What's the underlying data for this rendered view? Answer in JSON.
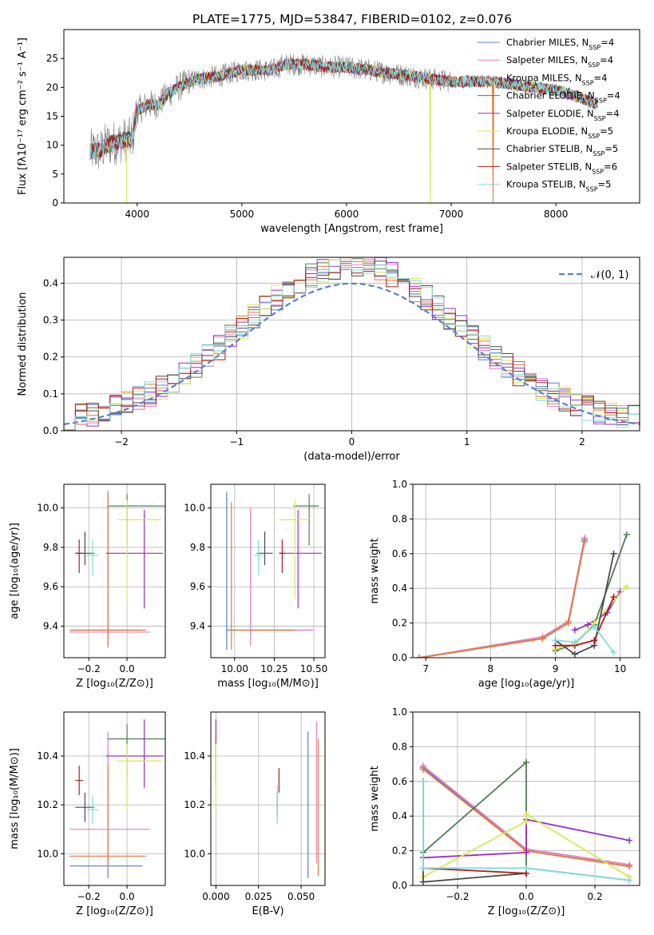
{
  "colors": {
    "Chabrier MILES": "#5b7fcf",
    "Salpeter MILES": "#e77fc0",
    "Kroupa MILES": "#e0793a",
    "Chabrier ELODIE": "#4e7d52",
    "Salpeter ELODIE": "#9a2fc2",
    "Kroupa ELODIE": "#d6ea52",
    "Chabrier STELIB": "#4a4a4a",
    "Salpeter STELIB": "#b01c1c",
    "Kroupa STELIB": "#82dde0",
    "data": "#7f7f7f",
    "normal": "#5b7fcf"
  },
  "chart_data": [
    {
      "id": "spectrum",
      "type": "line",
      "title": "PLATE=1775, MJD=53847, FIBERID=0102, z=0.076",
      "xlabel": "wavelength [Angstrom, rest frame]",
      "ylabel": "Flux [fλ10⁻¹⁷ erg cm⁻² s⁻¹ A⁻¹]",
      "xlim": [
        3300,
        8800
      ],
      "ylim": [
        0,
        30
      ],
      "xticks": [
        "4000",
        "5000",
        "6000",
        "7000",
        "8000"
      ],
      "yticks": [
        "0",
        "5",
        "10",
        "15",
        "20",
        "25"
      ],
      "grid": false,
      "legend_position": "top-right",
      "continuum_points": [
        [
          3550,
          9
        ],
        [
          3650,
          9
        ],
        [
          3700,
          10
        ],
        [
          3800,
          10.5
        ],
        [
          3900,
          11
        ],
        [
          3950,
          11
        ],
        [
          4000,
          16
        ],
        [
          4100,
          17
        ],
        [
          4200,
          17
        ],
        [
          4300,
          19
        ],
        [
          4400,
          20
        ],
        [
          4500,
          21
        ],
        [
          4600,
          21.5
        ],
        [
          4800,
          22
        ],
        [
          5000,
          23
        ],
        [
          5200,
          23
        ],
        [
          5300,
          23
        ],
        [
          5400,
          24
        ],
        [
          5600,
          24
        ],
        [
          5800,
          23.5
        ],
        [
          6000,
          23.5
        ],
        [
          6200,
          23
        ],
        [
          6400,
          22.5
        ],
        [
          6600,
          22
        ],
        [
          6800,
          21.5
        ],
        [
          7000,
          21
        ],
        [
          7200,
          21
        ],
        [
          7400,
          21
        ],
        [
          7600,
          20.5
        ],
        [
          7800,
          20
        ],
        [
          8000,
          19.5
        ],
        [
          8200,
          18.5
        ],
        [
          8400,
          17
        ]
      ]
    },
    {
      "id": "residuals",
      "type": "bar",
      "xlabel": "(data-model)/error",
      "ylabel": "Normed distribution",
      "xlim": [
        -2.5,
        2.5
      ],
      "ylim": [
        0,
        0.47
      ],
      "xticks": [
        "−2",
        "−1",
        "0",
        "1",
        "2"
      ],
      "yticks": [
        "0.0",
        "0.1",
        "0.2",
        "0.3",
        "0.4"
      ],
      "grid": true,
      "legend_position": "top-right",
      "reference_label": "𝒩(0, 1)",
      "bin_width": 0.1
    },
    {
      "id": "age_vs_Z",
      "type": "scatter",
      "xlabel": "Z [log₁₀(Z/Z⊙)]",
      "ylabel": "age  [log₁₀(age/yr)]",
      "xlim": [
        -0.33,
        0.2
      ],
      "ylim": [
        9.24,
        10.12
      ],
      "xticks": [
        "−0.2",
        "0.0"
      ],
      "yticks": [
        "9.4",
        "9.6",
        "9.8",
        "10.0"
      ],
      "grid": true,
      "points": [
        {
          "model": "Chabrier MILES",
          "x": -0.1,
          "y": 9.38,
          "xerr": [
            0.2,
            0.18
          ],
          "yerr": [
            0.08,
            0.7
          ]
        },
        {
          "model": "Salpeter MILES",
          "x": -0.1,
          "y": 9.37,
          "xerr": [
            0.2,
            0.22
          ],
          "yerr": [
            0.08,
            0.72
          ]
        },
        {
          "model": "Kroupa MILES",
          "x": -0.1,
          "y": 9.38,
          "xerr": [
            0.2,
            0.2
          ],
          "yerr": [
            0.08,
            0.7
          ]
        },
        {
          "model": "Chabrier ELODIE",
          "x": 0.0,
          "y": 10.01,
          "xerr": [
            0.1,
            0.2
          ],
          "yerr": [
            0.2,
            0.06
          ]
        },
        {
          "model": "Salpeter ELODIE",
          "x": 0.09,
          "y": 9.77,
          "xerr": [
            0.2,
            0.1
          ],
          "yerr": [
            0.28,
            0.22
          ]
        },
        {
          "model": "Kroupa ELODIE",
          "x": 0.0,
          "y": 9.94,
          "xerr": [
            0.05,
            0.18
          ],
          "yerr": [
            0.4,
            0.1
          ]
        },
        {
          "model": "Chabrier STELIB",
          "x": -0.22,
          "y": 9.77,
          "xerr": [
            0.05,
            0.05
          ],
          "yerr": [
            0.06,
            0.11
          ]
        },
        {
          "model": "Salpeter STELIB",
          "x": -0.25,
          "y": 9.77,
          "xerr": [
            0.02,
            0.02
          ],
          "yerr": [
            0.1,
            0.07
          ]
        },
        {
          "model": "Kroupa STELIB",
          "x": -0.18,
          "y": 9.76,
          "xerr": [
            0.03,
            0.03
          ],
          "yerr": [
            0.1,
            0.08
          ]
        }
      ]
    },
    {
      "id": "age_vs_mass",
      "type": "scatter",
      "xlabel": "mass [log₁₀(M/M⊙)]",
      "ylabel": "",
      "xlim": [
        9.85,
        10.57
      ],
      "ylim": [
        9.24,
        10.12
      ],
      "xticks": [
        "10.00",
        "10.25",
        "10.50"
      ],
      "yticks": [
        "9.4",
        "9.6",
        "9.8",
        "10.0"
      ],
      "grid": true,
      "points": [
        {
          "model": "Chabrier MILES",
          "x": 9.95,
          "y": 9.38,
          "xerr": [
            0.0,
            0.52
          ],
          "yerr": [
            0.1,
            0.7
          ]
        },
        {
          "model": "Salpeter MILES",
          "x": 10.1,
          "y": 9.38,
          "xerr": [
            0.0,
            0.4
          ],
          "yerr": [
            0.08,
            0.62
          ]
        },
        {
          "model": "Kroupa MILES",
          "x": 9.98,
          "y": 9.38,
          "xerr": [
            0.0,
            0.4
          ],
          "yerr": [
            0.1,
            0.65
          ]
        },
        {
          "model": "Chabrier ELODIE",
          "x": 10.47,
          "y": 10.01,
          "xerr": [
            0.1,
            0.06
          ],
          "yerr": [
            0.2,
            0.06
          ]
        },
        {
          "model": "Salpeter ELODIE",
          "x": 10.4,
          "y": 9.77,
          "xerr": [
            0.12,
            0.15
          ],
          "yerr": [
            0.28,
            0.22
          ]
        },
        {
          "model": "Kroupa ELODIE",
          "x": 10.38,
          "y": 9.94,
          "xerr": [
            0.1,
            0.08
          ],
          "yerr": [
            0.4,
            0.1
          ]
        },
        {
          "model": "Chabrier STELIB",
          "x": 10.19,
          "y": 9.77,
          "xerr": [
            0.05,
            0.05
          ],
          "yerr": [
            0.06,
            0.11
          ]
        },
        {
          "model": "Salpeter STELIB",
          "x": 10.3,
          "y": 9.77,
          "xerr": [
            0.02,
            0.02
          ],
          "yerr": [
            0.1,
            0.07
          ]
        },
        {
          "model": "Kroupa STELIB",
          "x": 10.15,
          "y": 9.76,
          "xerr": [
            0.03,
            0.03
          ],
          "yerr": [
            0.1,
            0.08
          ]
        }
      ]
    },
    {
      "id": "mass_weight_vs_age",
      "type": "line",
      "xlabel": "age  [log₁₀(age/yr)]",
      "ylabel": "mass weight",
      "xlim": [
        6.8,
        10.3
      ],
      "ylim": [
        0,
        1
      ],
      "xticks": [
        "7",
        "8",
        "9",
        "10"
      ],
      "yticks": [
        "0.0",
        "0.2",
        "0.4",
        "0.6",
        "0.8",
        "1.0"
      ],
      "grid": true,
      "series": [
        {
          "model": "Chabrier MILES",
          "x": [
            6.9,
            8.8,
            9.2,
            9.45
          ],
          "y": [
            0.0,
            0.11,
            0.2,
            0.68
          ]
        },
        {
          "model": "Salpeter MILES",
          "x": [
            6.9,
            8.8,
            9.2,
            9.45
          ],
          "y": [
            0.0,
            0.12,
            0.21,
            0.69
          ]
        },
        {
          "model": "Kroupa MILES",
          "x": [
            6.9,
            8.8,
            9.2,
            9.45
          ],
          "y": [
            0.0,
            0.11,
            0.2,
            0.67
          ]
        },
        {
          "model": "Chabrier ELODIE",
          "x": [
            9.0,
            9.3,
            9.6,
            10.1
          ],
          "y": [
            0.04,
            0.08,
            0.19,
            0.71
          ]
        },
        {
          "model": "Salpeter ELODIE",
          "x": [
            9.3,
            9.5,
            9.8,
            10.0
          ],
          "y": [
            0.16,
            0.19,
            0.26,
            0.38
          ]
        },
        {
          "model": "Kroupa ELODIE",
          "x": [
            9.0,
            9.3,
            9.6,
            10.1
          ],
          "y": [
            0.05,
            0.08,
            0.2,
            0.41
          ]
        },
        {
          "model": "Chabrier STELIB",
          "x": [
            9.0,
            9.3,
            9.6,
            9.9
          ],
          "y": [
            0.1,
            0.02,
            0.07,
            0.6
          ]
        },
        {
          "model": "Salpeter STELIB",
          "x": [
            9.0,
            9.3,
            9.6,
            9.9
          ],
          "y": [
            0.07,
            0.07,
            0.1,
            0.35
          ]
        },
        {
          "model": "Kroupa STELIB",
          "x": [
            9.0,
            9.3,
            9.6,
            9.9
          ],
          "y": [
            0.1,
            0.09,
            0.18,
            0.03
          ]
        }
      ]
    },
    {
      "id": "mass_vs_Z",
      "type": "scatter",
      "xlabel": "Z [log₁₀(Z/Z⊙)]",
      "ylabel": "mass [log₁₀(M/M⊙)]",
      "xlim": [
        -0.33,
        0.2
      ],
      "ylim": [
        9.87,
        10.58
      ],
      "xticks": [
        "−0.2",
        "0.0"
      ],
      "yticks": [
        "10.0",
        "10.2",
        "10.4"
      ],
      "grid": true,
      "points": [
        {
          "model": "Chabrier MILES",
          "x": -0.1,
          "y": 9.95,
          "xerr": [
            0.2,
            0.18
          ],
          "yerr": [
            0.05,
            0.4
          ]
        },
        {
          "model": "Salpeter MILES",
          "x": -0.1,
          "y": 10.1,
          "xerr": [
            0.2,
            0.22
          ],
          "yerr": [
            0.15,
            0.4
          ]
        },
        {
          "model": "Kroupa MILES",
          "x": -0.1,
          "y": 9.99,
          "xerr": [
            0.2,
            0.2
          ],
          "yerr": [
            0.05,
            0.38
          ]
        },
        {
          "model": "Chabrier ELODIE",
          "x": 0.0,
          "y": 10.47,
          "xerr": [
            0.1,
            0.2
          ],
          "yerr": [
            0.16,
            0.06
          ]
        },
        {
          "model": "Salpeter ELODIE",
          "x": 0.09,
          "y": 10.4,
          "xerr": [
            0.2,
            0.1
          ],
          "yerr": [
            0.13,
            0.15
          ]
        },
        {
          "model": "Kroupa ELODIE",
          "x": 0.0,
          "y": 10.38,
          "xerr": [
            0.05,
            0.18
          ],
          "yerr": [
            0.2,
            0.07
          ]
        },
        {
          "model": "Chabrier STELIB",
          "x": -0.22,
          "y": 10.19,
          "xerr": [
            0.05,
            0.05
          ],
          "yerr": [
            0.06,
            0.06
          ]
        },
        {
          "model": "Salpeter STELIB",
          "x": -0.25,
          "y": 10.3,
          "xerr": [
            0.02,
            0.02
          ],
          "yerr": [
            0.06,
            0.06
          ]
        },
        {
          "model": "Kroupa STELIB",
          "x": -0.18,
          "y": 10.18,
          "xerr": [
            0.03,
            0.03
          ],
          "yerr": [
            0.06,
            0.06
          ]
        }
      ]
    },
    {
      "id": "mass_vs_ebv",
      "type": "scatter",
      "xlabel": "E(B-V)",
      "ylabel": "",
      "xlim": [
        -0.003,
        0.064
      ],
      "ylim": [
        9.87,
        10.58
      ],
      "xticks": [
        "0.000",
        "0.025",
        "0.050"
      ],
      "yticks": [
        "10.0",
        "10.2",
        "10.4"
      ],
      "grid": true,
      "points": [
        {
          "model": "Chabrier MILES",
          "x": 0.054,
          "y": 10.2,
          "xerr": [
            0,
            0
          ],
          "yerr": [
            0.3,
            0.3
          ]
        },
        {
          "model": "Salpeter MILES",
          "x": 0.059,
          "y": 10.25,
          "xerr": [
            0,
            0
          ],
          "yerr": [
            0.29,
            0.29
          ]
        },
        {
          "model": "Kroupa MILES",
          "x": 0.06,
          "y": 10.18,
          "xerr": [
            0,
            0
          ],
          "yerr": [
            0.27,
            0.29
          ]
        },
        {
          "model": "Chabrier ELODIE",
          "x": 0.0,
          "y": 10.38,
          "xerr": [
            0,
            0
          ],
          "yerr": [
            0.1,
            0.1
          ]
        },
        {
          "model": "Salpeter ELODIE",
          "x": 0.0,
          "y": 10.4,
          "xerr": [
            0,
            0
          ],
          "yerr": [
            0.1,
            0.15
          ]
        },
        {
          "model": "Kroupa ELODIE",
          "x": 0.0,
          "y": 10.3,
          "xerr": [
            0,
            0
          ],
          "yerr": [
            0.12,
            0.15
          ]
        },
        {
          "model": "Chabrier STELIB",
          "x": 0.036,
          "y": 10.2,
          "xerr": [
            0,
            0
          ],
          "yerr": [
            0.05,
            0.05
          ]
        },
        {
          "model": "Salpeter STELIB",
          "x": 0.037,
          "y": 10.3,
          "xerr": [
            0,
            0
          ],
          "yerr": [
            0.05,
            0.05
          ]
        },
        {
          "model": "Kroupa STELIB",
          "x": 0.036,
          "y": 10.2,
          "xerr": [
            0,
            0
          ],
          "yerr": [
            0.08,
            0.08
          ]
        }
      ]
    },
    {
      "id": "mass_weight_vs_Z",
      "type": "line",
      "xlabel": "Z [log₁₀(Z/Z⊙)]",
      "ylabel": "mass weight",
      "xlim": [
        -0.33,
        0.33
      ],
      "ylim": [
        0,
        1
      ],
      "xticks": [
        "−0.2",
        "0.0",
        "0.2"
      ],
      "yticks": [
        "0.0",
        "0.2",
        "0.4",
        "0.6",
        "0.8",
        "1.0"
      ],
      "grid": true,
      "series": [
        {
          "model": "Chabrier MILES",
          "x": [
            -0.3,
            0.0,
            0.3
          ],
          "y": [
            0.68,
            0.2,
            0.11
          ]
        },
        {
          "model": "Salpeter MILES",
          "x": [
            -0.3,
            0.0,
            0.3
          ],
          "y": [
            0.69,
            0.21,
            0.12
          ]
        },
        {
          "model": "Kroupa MILES",
          "x": [
            -0.3,
            0.0,
            0.3
          ],
          "y": [
            0.67,
            0.2,
            0.11
          ]
        },
        {
          "model": "Chabrier ELODIE",
          "x": [
            -0.3,
            0.0,
            0.0,
            0.3
          ],
          "y": [
            0.19,
            0.71,
            0.1,
            0.03
          ]
        },
        {
          "model": "Salpeter ELODIE",
          "x": [
            -0.3,
            0.0,
            0.0,
            0.3
          ],
          "y": [
            0.16,
            0.19,
            0.38,
            0.26
          ]
        },
        {
          "model": "Kroupa ELODIE",
          "x": [
            -0.3,
            0.0,
            0.0,
            0.3
          ],
          "y": [
            0.05,
            0.37,
            0.41,
            0.05
          ]
        },
        {
          "model": "Chabrier STELIB",
          "x": [
            -0.3,
            -0.3,
            0.0,
            0.0
          ],
          "y": [
            0.6,
            0.02,
            0.07,
            0.07
          ]
        },
        {
          "model": "Salpeter STELIB",
          "x": [
            -0.3,
            0.0,
            0.0
          ],
          "y": [
            0.1,
            0.07,
            0.07
          ]
        },
        {
          "model": "Kroupa STELIB",
          "x": [
            -0.3,
            -0.3,
            0.0,
            0.3
          ],
          "y": [
            0.6,
            0.1,
            0.1,
            0.03
          ]
        }
      ]
    }
  ],
  "legend": [
    {
      "model": "Chabrier MILES",
      "label": "Chabrier MILES, N",
      "n": "=4"
    },
    {
      "model": "Salpeter MILES",
      "label": "Salpeter MILES, N",
      "n": "=4"
    },
    {
      "model": "Kroupa MILES",
      "label": "Kroupa MILES, N",
      "n": "=4"
    },
    {
      "model": "Chabrier ELODIE",
      "label": "Chabrier ELODIE, N",
      "n": "=4"
    },
    {
      "model": "Salpeter ELODIE",
      "label": "Salpeter ELODIE, N",
      "n": "=4"
    },
    {
      "model": "Kroupa ELODIE",
      "label": "Kroupa ELODIE, N",
      "n": "=5"
    },
    {
      "model": "Chabrier STELIB",
      "label": "Chabrier STELIB, N",
      "n": "=5"
    },
    {
      "model": "Salpeter STELIB",
      "label": "Salpeter STELIB, N",
      "n": "=6"
    },
    {
      "model": "Kroupa STELIB",
      "label": "Kroupa STELIB, N",
      "n": "=5"
    }
  ],
  "legend_subscript": "SSP"
}
